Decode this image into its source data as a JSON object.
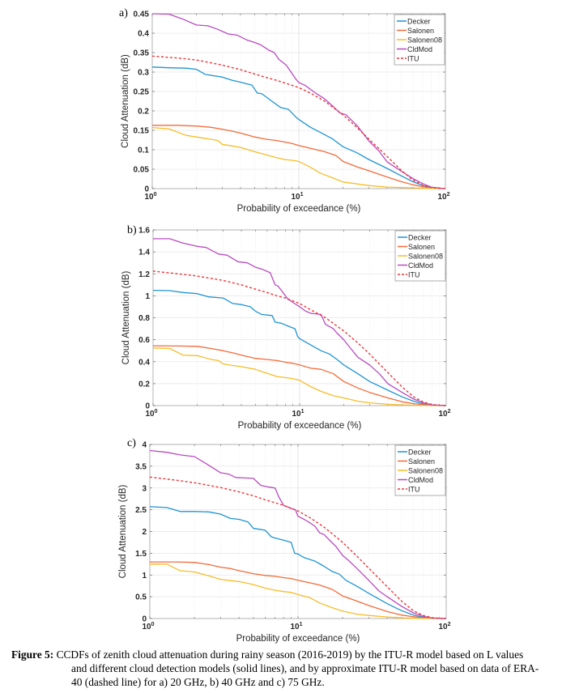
{
  "figure": {
    "caption_lead": "Figure 5:",
    "caption_lines": [
      "CCDFs of zenith cloud attenuation during rainy season (2016-2019) by the ITU-R model based on L values",
      "and different cloud detection models (solid lines), and by approximate ITU-R model based on data of ERA-",
      "40 (dashed line) for a) 20 GHz, b) 40 GHz and c) 75 GHz."
    ]
  },
  "colors": {
    "Decker": "#1f94d2",
    "Salonen": "#f26b3a",
    "Salonen08": "#f6bd29",
    "CldMod": "#b84bbf",
    "ITU": "#f0353a"
  },
  "chart_data": [
    {
      "type": "line",
      "panel_label": "a)",
      "title": "",
      "xlabel": "Probability of exceedance (%)",
      "ylabel": "Cloud Attenuation (dB)",
      "xscale": "log",
      "xlim": [
        1,
        100
      ],
      "ylim": [
        0,
        0.45
      ],
      "xticks": [
        1,
        10,
        100
      ],
      "xtick_labels": [
        {
          "base": "10",
          "exp": "0"
        },
        {
          "base": "10",
          "exp": "1"
        },
        {
          "base": "10",
          "exp": "2"
        }
      ],
      "yticks": [
        0,
        0.05,
        0.1,
        0.15,
        0.2,
        0.25,
        0.3,
        0.35,
        0.4,
        0.45
      ],
      "ytick_labels": [
        "0",
        "0.05",
        "0.1",
        "0.15",
        "0.2",
        "0.25",
        "0.3",
        "0.35",
        "0.4",
        "0.45"
      ],
      "grid": true,
      "legend_position": "top-right",
      "series": [
        {
          "name": "Decker",
          "style": "solid",
          "x": [
            1,
            1.3,
            1.7,
            2,
            2.3,
            3,
            3.5,
            4,
            4.8,
            5.2,
            5.6,
            6.5,
            7.5,
            8.5,
            9.5,
            10,
            12,
            14,
            17,
            20,
            25,
            30,
            40,
            50,
            60,
            70,
            80,
            100
          ],
          "values": [
            0.313,
            0.311,
            0.31,
            0.307,
            0.294,
            0.287,
            0.279,
            0.274,
            0.266,
            0.246,
            0.244,
            0.226,
            0.209,
            0.204,
            0.185,
            0.178,
            0.158,
            0.145,
            0.128,
            0.108,
            0.092,
            0.075,
            0.052,
            0.033,
            0.018,
            0.008,
            0.002,
            0
          ]
        },
        {
          "name": "Salonen",
          "style": "solid",
          "x": [
            1,
            1.5,
            2,
            2.5,
            3,
            3.5,
            4,
            5,
            6,
            7,
            8,
            9,
            10,
            12,
            15,
            18,
            20,
            25,
            30,
            40,
            50,
            60,
            70,
            80,
            100
          ],
          "values": [
            0.163,
            0.163,
            0.161,
            0.158,
            0.153,
            0.148,
            0.143,
            0.133,
            0.127,
            0.124,
            0.12,
            0.116,
            0.111,
            0.104,
            0.095,
            0.085,
            0.07,
            0.056,
            0.046,
            0.03,
            0.018,
            0.01,
            0.005,
            0.002,
            0
          ]
        },
        {
          "name": "Salonen08",
          "style": "solid",
          "x": [
            1,
            1.3,
            1.7,
            2,
            2.5,
            2.8,
            3,
            3.5,
            4,
            5,
            6,
            7,
            8,
            9,
            10,
            12,
            14,
            17,
            20,
            25,
            30,
            40,
            50,
            60,
            70,
            80,
            100
          ],
          "values": [
            0.157,
            0.154,
            0.137,
            0.133,
            0.127,
            0.124,
            0.114,
            0.11,
            0.106,
            0.095,
            0.087,
            0.08,
            0.075,
            0.073,
            0.07,
            0.055,
            0.04,
            0.028,
            0.017,
            0.012,
            0.008,
            0.004,
            0.003,
            0.002,
            0.001,
            0.0005,
            0
          ]
        },
        {
          "name": "CldMod",
          "style": "solid",
          "x": [
            1,
            1.3,
            1.6,
            2,
            2.4,
            2.8,
            3.3,
            3.8,
            4.4,
            5,
            5.5,
            6.2,
            6.8,
            7.3,
            8.2,
            9,
            9.5,
            10,
            11,
            13,
            15,
            17,
            19,
            21,
            25,
            30,
            35,
            40,
            50,
            60,
            70,
            80,
            100
          ],
          "values": [
            0.45,
            0.449,
            0.437,
            0.421,
            0.419,
            0.41,
            0.398,
            0.395,
            0.383,
            0.376,
            0.37,
            0.357,
            0.35,
            0.333,
            0.318,
            0.296,
            0.283,
            0.273,
            0.266,
            0.246,
            0.231,
            0.213,
            0.195,
            0.19,
            0.162,
            0.123,
            0.098,
            0.069,
            0.045,
            0.026,
            0.013,
            0.004,
            0
          ]
        },
        {
          "name": "ITU",
          "style": "dashed",
          "x": [
            1,
            1.5,
            2,
            3,
            4,
            5,
            6,
            7,
            8,
            10,
            12,
            15,
            20,
            25,
            30,
            40,
            50,
            60,
            70,
            80,
            90,
            100
          ],
          "values": [
            0.341,
            0.336,
            0.331,
            0.318,
            0.306,
            0.295,
            0.286,
            0.279,
            0.272,
            0.26,
            0.246,
            0.225,
            0.19,
            0.157,
            0.128,
            0.083,
            0.047,
            0.022,
            0.009,
            0.003,
            0.001,
            0
          ]
        }
      ]
    },
    {
      "type": "line",
      "panel_label": "b)",
      "title": "",
      "xlabel": "Probability of exceedance (%)",
      "ylabel": "Cloud Attenuation (dB)",
      "xscale": "log",
      "xlim": [
        1,
        100
      ],
      "ylim": [
        0,
        1.6
      ],
      "xticks": [
        1,
        10,
        100
      ],
      "xtick_labels": [
        {
          "base": "10",
          "exp": "0"
        },
        {
          "base": "10",
          "exp": "1"
        },
        {
          "base": "10",
          "exp": "2"
        }
      ],
      "yticks": [
        0,
        0.2,
        0.4,
        0.6,
        0.8,
        1,
        1.2,
        1.4,
        1.6
      ],
      "ytick_labels": [
        "0",
        "0.2",
        "0.4",
        "0.6",
        "0.8",
        "1",
        "1.2",
        "1.4",
        "1.6"
      ],
      "grid": true,
      "legend_position": "top-right",
      "series": [
        {
          "name": "Decker",
          "style": "solid",
          "x": [
            1,
            1.3,
            1.6,
            2,
            2.4,
            3,
            3.5,
            4,
            4.6,
            5,
            5.5,
            6.5,
            6.8,
            7.5,
            8.5,
            9.3,
            9.7,
            10,
            12,
            14,
            16,
            18,
            20,
            25,
            30,
            40,
            50,
            60,
            70,
            80,
            100
          ],
          "values": [
            1.05,
            1.047,
            1.03,
            1.02,
            0.99,
            0.98,
            0.93,
            0.92,
            0.9,
            0.86,
            0.83,
            0.82,
            0.76,
            0.75,
            0.72,
            0.7,
            0.63,
            0.61,
            0.55,
            0.5,
            0.47,
            0.42,
            0.37,
            0.29,
            0.22,
            0.14,
            0.08,
            0.04,
            0.015,
            0.004,
            0
          ]
        },
        {
          "name": "Salonen",
          "style": "solid",
          "x": [
            1,
            1.5,
            2,
            2.5,
            3,
            3.5,
            4,
            5,
            6,
            7,
            8,
            9,
            10,
            12,
            14,
            17,
            20,
            25,
            30,
            40,
            50,
            60,
            70,
            80,
            100
          ],
          "values": [
            0.545,
            0.543,
            0.54,
            0.52,
            0.5,
            0.48,
            0.46,
            0.43,
            0.42,
            0.41,
            0.395,
            0.385,
            0.37,
            0.34,
            0.33,
            0.29,
            0.22,
            0.16,
            0.12,
            0.07,
            0.035,
            0.018,
            0.008,
            0.003,
            0
          ]
        },
        {
          "name": "Salonen08",
          "style": "solid",
          "x": [
            1,
            1.3,
            1.6,
            2,
            2.5,
            2.8,
            3,
            3.5,
            4,
            5,
            5.5,
            6,
            7,
            8,
            9,
            10,
            12,
            14,
            17,
            20,
            25,
            30,
            40,
            50,
            60,
            70,
            80,
            100
          ],
          "values": [
            0.525,
            0.52,
            0.46,
            0.455,
            0.42,
            0.41,
            0.38,
            0.365,
            0.355,
            0.33,
            0.31,
            0.295,
            0.265,
            0.255,
            0.245,
            0.23,
            0.17,
            0.13,
            0.09,
            0.07,
            0.04,
            0.025,
            0.012,
            0.006,
            0.003,
            0.001,
            0.0005,
            0
          ]
        },
        {
          "name": "CldMod",
          "style": "solid",
          "x": [
            1,
            1.3,
            1.6,
            2,
            2.3,
            2.8,
            3.2,
            3.8,
            4.4,
            5,
            5.6,
            6.3,
            6.8,
            7.1,
            7.6,
            8.3,
            9,
            10,
            11,
            12,
            14,
            15,
            17,
            18,
            20,
            22,
            25,
            30,
            35,
            40,
            50,
            60,
            70,
            80,
            100
          ],
          "values": [
            1.52,
            1.52,
            1.48,
            1.45,
            1.44,
            1.38,
            1.37,
            1.31,
            1.3,
            1.26,
            1.24,
            1.21,
            1.1,
            1.09,
            1.04,
            0.97,
            0.94,
            0.9,
            0.86,
            0.84,
            0.83,
            0.74,
            0.7,
            0.66,
            0.6,
            0.53,
            0.44,
            0.37,
            0.29,
            0.2,
            0.12,
            0.06,
            0.025,
            0.006,
            0
          ]
        },
        {
          "name": "ITU",
          "style": "dashed",
          "x": [
            1,
            1.5,
            2,
            3,
            4,
            5,
            6,
            7,
            8,
            10,
            12,
            15,
            20,
            25,
            30,
            40,
            50,
            60,
            70,
            80,
            90,
            100
          ],
          "values": [
            1.225,
            1.2,
            1.18,
            1.14,
            1.1,
            1.06,
            1.03,
            1.0,
            0.98,
            0.93,
            0.87,
            0.8,
            0.68,
            0.57,
            0.47,
            0.3,
            0.17,
            0.08,
            0.032,
            0.01,
            0.003,
            0
          ]
        }
      ]
    },
    {
      "type": "line",
      "panel_label": "c)",
      "title": "",
      "xlabel": "Probability of exceedance (%)",
      "ylabel": "Cloud Attenuation (dB)",
      "xscale": "log",
      "xlim": [
        1,
        100
      ],
      "ylim": [
        0,
        4
      ],
      "xticks": [
        1,
        10,
        100
      ],
      "xtick_labels": [
        {
          "base": "10",
          "exp": "0"
        },
        {
          "base": "10",
          "exp": "1"
        },
        {
          "base": "10",
          "exp": "2"
        }
      ],
      "yticks": [
        0,
        0.5,
        1,
        1.5,
        2,
        2.5,
        3,
        3.5,
        4
      ],
      "ytick_labels": [
        "0",
        "0.5",
        "1",
        "1.5",
        "2",
        "2.5",
        "3",
        "3.5",
        "4"
      ],
      "grid": true,
      "legend_position": "top-right",
      "series": [
        {
          "name": "Decker",
          "style": "solid",
          "x": [
            1,
            1.3,
            1.6,
            2,
            2.5,
            3,
            3.5,
            4,
            4.6,
            5,
            5.5,
            6,
            6.6,
            7,
            8,
            9,
            9.5,
            10,
            11,
            13,
            15,
            17,
            19,
            21,
            25,
            30,
            40,
            50,
            60,
            70,
            80,
            100
          ],
          "values": [
            2.57,
            2.55,
            2.46,
            2.46,
            2.45,
            2.4,
            2.3,
            2.28,
            2.22,
            2.07,
            2.05,
            2.03,
            1.88,
            1.85,
            1.8,
            1.75,
            1.5,
            1.48,
            1.4,
            1.32,
            1.2,
            1.08,
            1.02,
            0.88,
            0.74,
            0.58,
            0.34,
            0.18,
            0.08,
            0.03,
            0.008,
            0
          ]
        },
        {
          "name": "Salonen",
          "style": "solid",
          "x": [
            1,
            1.5,
            2,
            2.5,
            3,
            3.5,
            4,
            5,
            6,
            7,
            8,
            9,
            10,
            12,
            14,
            17,
            20,
            25,
            30,
            40,
            50,
            60,
            70,
            80,
            100
          ],
          "values": [
            1.3,
            1.3,
            1.29,
            1.24,
            1.18,
            1.15,
            1.1,
            1.03,
            0.99,
            0.97,
            0.94,
            0.92,
            0.88,
            0.82,
            0.77,
            0.67,
            0.52,
            0.4,
            0.3,
            0.16,
            0.08,
            0.04,
            0.015,
            0.004,
            0
          ]
        },
        {
          "name": "Salonen08",
          "style": "solid",
          "x": [
            1,
            1.3,
            1.6,
            2,
            2.5,
            3,
            3.5,
            4,
            5,
            6,
            7,
            8,
            9,
            10,
            12,
            14,
            17,
            20,
            25,
            30,
            40,
            50,
            60,
            70,
            80,
            100
          ],
          "values": [
            1.25,
            1.25,
            1.1,
            1.07,
            0.98,
            0.9,
            0.87,
            0.85,
            0.78,
            0.7,
            0.65,
            0.62,
            0.6,
            0.55,
            0.48,
            0.36,
            0.25,
            0.17,
            0.1,
            0.07,
            0.035,
            0.015,
            0.006,
            0.002,
            0.0005,
            0
          ]
        },
        {
          "name": "CldMod",
          "style": "solid",
          "x": [
            1,
            1.3,
            1.6,
            2,
            2.4,
            3,
            3.4,
            3.8,
            4.4,
            5,
            5.6,
            6.4,
            7,
            7.4,
            8,
            9,
            9.6,
            10,
            11,
            12,
            13,
            14,
            15,
            17,
            18,
            20,
            22,
            25,
            30,
            35,
            40,
            50,
            60,
            70,
            80,
            100
          ],
          "values": [
            3.86,
            3.82,
            3.76,
            3.72,
            3.56,
            3.35,
            3.32,
            3.24,
            3.23,
            3.22,
            3.06,
            3.02,
            3.0,
            2.8,
            2.6,
            2.53,
            2.5,
            2.35,
            2.28,
            2.2,
            2.12,
            1.97,
            1.93,
            1.74,
            1.66,
            1.45,
            1.33,
            1.15,
            0.88,
            0.64,
            0.5,
            0.28,
            0.13,
            0.05,
            0.012,
            0
          ]
        },
        {
          "name": "ITU",
          "style": "dashed",
          "x": [
            1,
            1.5,
            2,
            3,
            4,
            5,
            6,
            7,
            8,
            10,
            12,
            15,
            20,
            25,
            30,
            40,
            50,
            60,
            70,
            80,
            90,
            100
          ],
          "values": [
            3.25,
            3.18,
            3.12,
            3.01,
            2.91,
            2.82,
            2.73,
            2.66,
            2.6,
            2.47,
            2.32,
            2.1,
            1.75,
            1.43,
            1.16,
            0.73,
            0.4,
            0.18,
            0.07,
            0.02,
            0.005,
            0
          ]
        }
      ]
    }
  ]
}
